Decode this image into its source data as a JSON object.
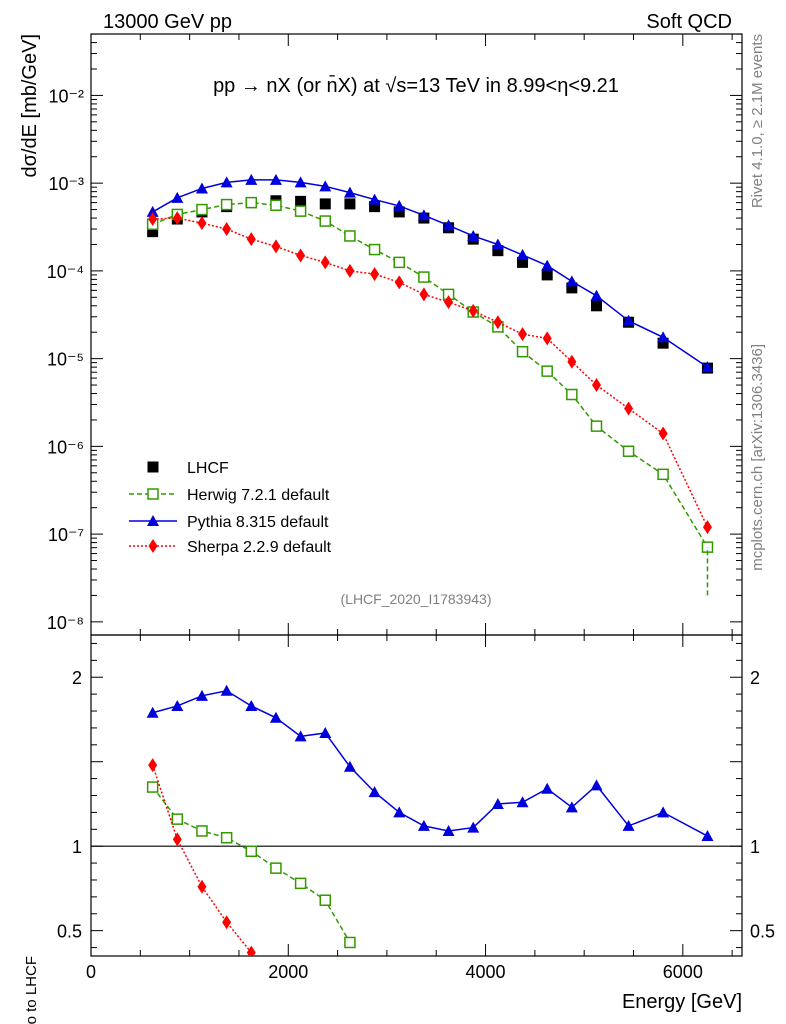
{
  "header": {
    "left": "13000 GeV pp",
    "right": "Soft QCD"
  },
  "side": {
    "rivet": "Rivet 4.1.0, ≥ 2.1M events",
    "mcplots": "mcplots.cern.ch [arXiv:1306.3436]"
  },
  "colors": {
    "lhcf": "#000000",
    "herwig": "#339900",
    "pythia": "#0000dd",
    "sherpa": "#ff0000"
  },
  "chart_data": [
    {
      "type": "line",
      "title": "pp → nX (or n̄X) at √s=13 TeV in 8.99<η<9.21",
      "analysis": "(LHCF_2020_I1783943)",
      "xlabel": "Energy [GeV]",
      "ylabel": "dσ/dE [mb/GeV]",
      "yscale": "log",
      "xlim": [
        0,
        6600
      ],
      "ylim_log10": [
        -8.15,
        -1.3
      ],
      "yticks": [
        "10⁻²",
        "10⁻³",
        "10⁻⁴",
        "10⁻⁵",
        "10⁻⁶",
        "10⁻⁷",
        "10⁻⁸"
      ],
      "x": [
        625,
        875,
        1125,
        1375,
        1625,
        1875,
        2125,
        2375,
        2625,
        2875,
        3125,
        3375,
        3625,
        3875,
        4125,
        4375,
        4625,
        4875,
        5125,
        5450,
        5800,
        6250
      ],
      "series": [
        {
          "name": "LHCF",
          "key": "lhcf",
          "values": [
            0.00028,
            0.00039,
            0.00047,
            0.00054,
            0.0006,
            0.00063,
            0.00062,
            0.00058,
            0.00058,
            0.00054,
            0.00047,
            0.0004,
            0.00031,
            0.00023,
            0.00017,
            0.000125,
            9e-05,
            6.4e-05,
            4e-05,
            2.6e-05,
            1.5e-05,
            7.8e-06
          ]
        },
        {
          "name": "Herwig 7.2.1 default",
          "key": "herwig",
          "values": [
            0.00034,
            0.00044,
            0.0005,
            0.00057,
            0.0006,
            0.00056,
            0.00048,
            0.00037,
            0.00025,
            0.000175,
            0.000125,
            8.5e-05,
            5.4e-05,
            3.4e-05,
            2.3e-05,
            1.2e-05,
            7.2e-06,
            3.9e-06,
            1.7e-06,
            8.8e-07,
            4.8e-07,
            7.1e-08
          ]
        },
        {
          "name": "Pythia 8.315 default",
          "key": "pythia",
          "values": [
            0.00047,
            0.00068,
            0.00087,
            0.00102,
            0.00109,
            0.00109,
            0.00102,
            0.00092,
            0.00078,
            0.00065,
            0.00055,
            0.00043,
            0.00033,
            0.00025,
            0.0002,
            0.000152,
            0.000115,
            7.6e-05,
            5.2e-05,
            2.7e-05,
            1.75e-05,
            8e-06
          ]
        },
        {
          "name": "Sherpa 2.2.9 default",
          "key": "sherpa",
          "values": [
            0.00039,
            0.0004,
            0.00035,
            0.0003,
            0.00023,
            0.00019,
            0.00015,
            0.000125,
            0.0001,
            9.2e-05,
            7.4e-05,
            5.4e-05,
            4.4e-05,
            3.5e-05,
            2.6e-05,
            1.9e-05,
            1.7e-05,
            9.2e-06,
            5e-06,
            2.7e-06,
            1.4e-06,
            1.2e-07
          ]
        }
      ]
    },
    {
      "type": "line",
      "ylabel": "Ratio to LHCF",
      "xlabel": "Energy [GeV]",
      "xlim": [
        0,
        6600
      ],
      "ylim": [
        0.35,
        2.25
      ],
      "xticks": [
        "0",
        "2000",
        "4000",
        "6000"
      ],
      "yticks": [
        "0.5",
        "1",
        "2"
      ],
      "x": [
        625,
        875,
        1125,
        1375,
        1625,
        1875,
        2125,
        2375,
        2625,
        2875,
        3125,
        3375,
        3625,
        3875,
        4125,
        4375,
        4625,
        4875,
        5125,
        5450,
        5800,
        6250
      ],
      "series": [
        {
          "name": "Herwig 7.2.1 default",
          "key": "herwig",
          "values": [
            1.35,
            1.16,
            1.09,
            1.05,
            0.97,
            0.87,
            0.78,
            0.68,
            0.43,
            null,
            null,
            null,
            null,
            null,
            null,
            null,
            null,
            null,
            null,
            null,
            null,
            null
          ]
        },
        {
          "name": "Pythia 8.315 default",
          "key": "pythia",
          "values": [
            1.79,
            1.83,
            1.89,
            1.92,
            1.83,
            1.76,
            1.65,
            1.67,
            1.47,
            1.32,
            1.2,
            1.12,
            1.09,
            1.11,
            1.25,
            1.26,
            1.34,
            1.23,
            1.36,
            1.12,
            1.2,
            1.06
          ]
        },
        {
          "name": "Sherpa 2.2.9 default",
          "key": "sherpa",
          "values": [
            1.48,
            1.04,
            0.76,
            0.55,
            0.37,
            null,
            null,
            null,
            null,
            null,
            null,
            null,
            null,
            null,
            null,
            null,
            null,
            null,
            null,
            null,
            null,
            null
          ]
        }
      ]
    }
  ]
}
